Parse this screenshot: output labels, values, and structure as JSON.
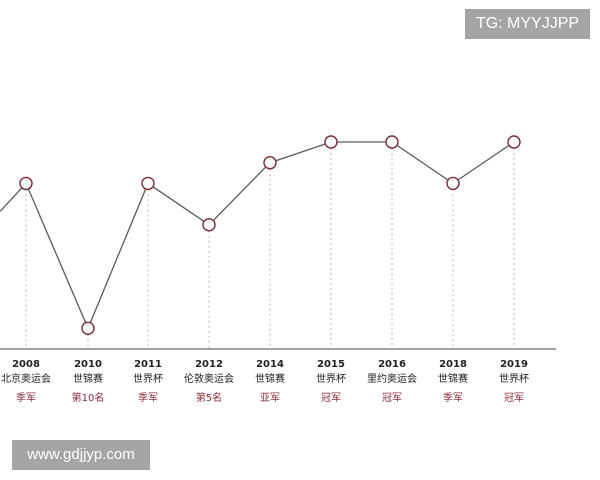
{
  "watermark_top": "TG: MYYJJPP",
  "watermark_bottom": "www.gdjjyp.com",
  "colors": {
    "line": "#5a5a5a",
    "marker": "#7a2a35",
    "result_text": "#8b2b3b",
    "label_text": "#222222",
    "axis": "#444444",
    "guide": "#bbbbbb",
    "watermark_bg": "#a5a5a5"
  },
  "chart_data": {
    "type": "line",
    "title": "",
    "xlabel": "",
    "ylabel": "",
    "ylim": [
      0,
      12
    ],
    "rank_axis": "lower value = better finish (1 = champion)",
    "points": [
      {
        "year": "2008",
        "event": "北京奥运会",
        "result": "季军",
        "rank": 3
      },
      {
        "year": "2010",
        "event": "世锦赛",
        "result": "第10名",
        "rank": 10
      },
      {
        "year": "2011",
        "event": "世界杯",
        "result": "季军",
        "rank": 3
      },
      {
        "year": "2012",
        "event": "伦敦奥运会",
        "result": "第5名",
        "rank": 5
      },
      {
        "year": "2014",
        "event": "世锦赛",
        "result": "亚军",
        "rank": 2
      },
      {
        "year": "2015",
        "event": "世界杯",
        "result": "冠军",
        "rank": 1
      },
      {
        "year": "2016",
        "event": "里约奥运会",
        "result": "冠军",
        "rank": 1
      },
      {
        "year": "2018",
        "event": "世锦赛",
        "result": "季军",
        "rank": 3
      },
      {
        "year": "2019",
        "event": "世界杯",
        "result": "冠军",
        "rank": 1
      }
    ]
  }
}
